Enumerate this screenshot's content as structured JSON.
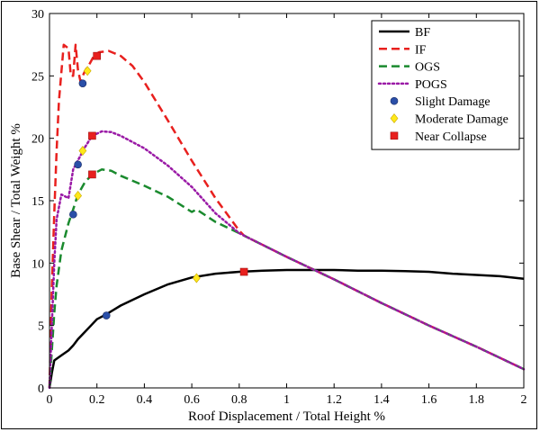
{
  "chart_data": {
    "type": "line",
    "xlabel": "Roof Displacement / Total Height %",
    "ylabel": "Base Shear / Total Weight %",
    "xlim": [
      0,
      2
    ],
    "ylim": [
      0,
      30
    ],
    "xticks": [
      0,
      0.2,
      0.4,
      0.6,
      0.8,
      1,
      1.2,
      1.4,
      1.6,
      1.8,
      2
    ],
    "yticks": [
      0,
      5,
      10,
      15,
      20,
      25,
      30
    ],
    "xtick_labels": [
      "0",
      "0.2",
      "0.4",
      "0.6",
      "0.8",
      "1",
      "1.2",
      "1.4",
      "1.6",
      "1.8",
      "2"
    ],
    "ytick_labels": [
      "0",
      "5",
      "10",
      "15",
      "20",
      "25",
      "30"
    ],
    "grid": false,
    "legend_position": "top-right",
    "series": [
      {
        "name": "BF",
        "color": "#000000",
        "style": "solid",
        "x": [
          0,
          0.01,
          0.02,
          0.05,
          0.08,
          0.1,
          0.12,
          0.15,
          0.18,
          0.2,
          0.24,
          0.3,
          0.4,
          0.5,
          0.6,
          0.7,
          0.8,
          0.9,
          1.0,
          1.1,
          1.2,
          1.3,
          1.4,
          1.5,
          1.6,
          1.7,
          1.8,
          1.9,
          2.0
        ],
        "y": [
          0,
          1.2,
          2.2,
          2.6,
          3.0,
          3.4,
          3.9,
          4.5,
          5.1,
          5.5,
          5.9,
          6.6,
          7.5,
          8.3,
          8.85,
          9.15,
          9.3,
          9.4,
          9.45,
          9.45,
          9.45,
          9.4,
          9.4,
          9.35,
          9.3,
          9.15,
          9.05,
          8.95,
          8.75
        ]
      },
      {
        "name": "IF",
        "color": "#e8201e",
        "style": "dashed",
        "x": [
          0,
          0.01,
          0.02,
          0.03,
          0.04,
          0.06,
          0.08,
          0.09,
          0.1,
          0.11,
          0.12,
          0.13,
          0.14,
          0.15,
          0.17,
          0.19,
          0.21,
          0.25,
          0.3,
          0.35,
          0.4,
          0.5,
          0.6,
          0.7,
          0.8,
          0.82,
          1.0,
          1.1,
          1.2,
          1.4,
          1.6,
          1.8,
          2.0
        ],
        "y": [
          0,
          8,
          14,
          19,
          23,
          27.5,
          27.2,
          25.0,
          25.0,
          27.5,
          25.5,
          24.6,
          25.0,
          25.4,
          26.0,
          26.7,
          26.9,
          27.0,
          26.6,
          25.8,
          24.5,
          21.4,
          18.2,
          15.2,
          12.6,
          12.2,
          10.5,
          9.6,
          8.7,
          6.8,
          5.0,
          3.3,
          1.5
        ]
      },
      {
        "name": "OGS",
        "color": "#1a8a2e",
        "style": "dashed",
        "x": [
          0,
          0.01,
          0.02,
          0.03,
          0.05,
          0.08,
          0.1,
          0.12,
          0.15,
          0.18,
          0.22,
          0.26,
          0.3,
          0.4,
          0.5,
          0.6,
          0.62,
          0.7,
          0.8,
          0.82,
          1.0,
          1.1,
          1.2,
          1.4,
          1.6,
          1.8,
          2.0
        ],
        "y": [
          0,
          3,
          6,
          8.2,
          11,
          13.2,
          14.3,
          15.5,
          16.5,
          17.1,
          17.5,
          17.4,
          17.0,
          16.2,
          15.3,
          14.1,
          14.3,
          13.3,
          12.4,
          12.2,
          10.5,
          9.6,
          8.7,
          6.8,
          5.0,
          3.3,
          1.5
        ]
      },
      {
        "name": "POGS",
        "color": "#9a1aa6",
        "style": "dotted",
        "x": [
          0,
          0.01,
          0.02,
          0.03,
          0.05,
          0.08,
          0.1,
          0.13,
          0.15,
          0.18,
          0.22,
          0.26,
          0.3,
          0.4,
          0.5,
          0.6,
          0.7,
          0.8,
          0.82,
          1.0,
          1.1,
          1.2,
          1.4,
          1.6,
          1.8,
          2.0
        ],
        "y": [
          0,
          5,
          10,
          13.5,
          15.5,
          15.2,
          17.5,
          18.6,
          19.3,
          20.2,
          20.55,
          20.5,
          20.2,
          19.2,
          17.8,
          16.1,
          14.0,
          12.4,
          12.2,
          10.5,
          9.6,
          8.7,
          6.8,
          5.0,
          3.3,
          1.5
        ]
      }
    ],
    "damage_markers": [
      {
        "name": "Slight Damage",
        "color": "#2a4fa8",
        "shape": "circle",
        "points": [
          [
            0.14,
            24.4
          ],
          [
            0.12,
            17.9
          ],
          [
            0.1,
            13.9
          ],
          [
            0.24,
            5.8
          ]
        ]
      },
      {
        "name": "Moderate Damage",
        "color": "#ffe81a",
        "shape": "diamond",
        "points": [
          [
            0.16,
            25.4
          ],
          [
            0.14,
            19.0
          ],
          [
            0.12,
            15.4
          ],
          [
            0.62,
            8.8
          ]
        ]
      },
      {
        "name": "Near Collapse",
        "color": "#e8201e",
        "shape": "square",
        "points": [
          [
            0.2,
            26.6
          ],
          [
            0.18,
            20.2
          ],
          [
            0.18,
            17.1
          ],
          [
            0.82,
            9.3
          ]
        ]
      }
    ]
  }
}
